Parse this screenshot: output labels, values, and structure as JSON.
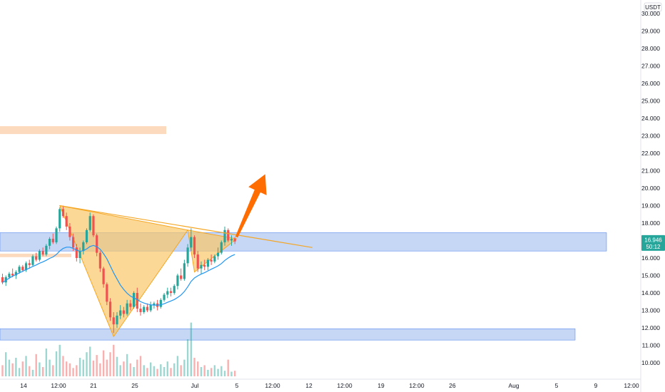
{
  "chart_data": {
    "type": "candlestick",
    "currency": "USDT",
    "ylim": [
      9.7,
      30.8
    ],
    "y_ticks": [
      "30.000",
      "29.000",
      "28.000",
      "27.000",
      "26.000",
      "25.000",
      "24.000",
      "23.000",
      "22.000",
      "21.000",
      "20.000",
      "19.000",
      "18.000",
      "17.000",
      "16.000",
      "15.000",
      "14.000",
      "13.000",
      "12.000",
      "11.000",
      "10.000"
    ],
    "x_ticks": [
      "14",
      "12:00",
      "21",
      "25",
      "Jul",
      "5",
      "12:00",
      "12",
      "12:00",
      "19",
      "12:00",
      "26",
      "Aug",
      "5",
      "9",
      "12:00"
    ],
    "last_price": "16.946",
    "countdown": "50:12",
    "colors": {
      "up": "#26a69a",
      "down": "#ef5350",
      "ma": "#2196f3",
      "resistance_zone": "#bcd0f5",
      "supply_zone": "#fbd3b3",
      "pattern_fill": "#f9c86a",
      "trendline": "#f5a623",
      "arrow": "#ff6d00",
      "badge": "#26a69a"
    },
    "zones": [
      {
        "name": "resistance-zone",
        "from": 16.4,
        "to": 17.45
      },
      {
        "name": "support-zone",
        "from": 11.3,
        "to": 11.95
      },
      {
        "name": "supply-zone",
        "from": 23.1,
        "to": 23.55
      },
      {
        "name": "minor-zone",
        "from": 16.05,
        "to": 16.25
      }
    ],
    "candles": [
      [
        14.9,
        15.1,
        14.5,
        14.6
      ],
      [
        14.6,
        15.0,
        14.4,
        14.9
      ],
      [
        14.9,
        15.2,
        14.8,
        15.1
      ],
      [
        15.1,
        15.4,
        14.9,
        15.0
      ],
      [
        15.0,
        15.3,
        14.8,
        15.2
      ],
      [
        15.2,
        15.6,
        15.1,
        15.5
      ],
      [
        15.5,
        15.6,
        15.2,
        15.3
      ],
      [
        15.3,
        15.8,
        15.2,
        15.7
      ],
      [
        15.7,
        15.9,
        15.4,
        15.6
      ],
      [
        15.6,
        16.2,
        15.5,
        16.1
      ],
      [
        16.1,
        16.3,
        15.8,
        15.9
      ],
      [
        15.9,
        16.5,
        15.8,
        16.4
      ],
      [
        16.4,
        16.6,
        16.1,
        16.2
      ],
      [
        16.2,
        16.8,
        16.1,
        16.7
      ],
      [
        16.7,
        17.2,
        16.5,
        17.1
      ],
      [
        17.1,
        17.4,
        16.8,
        16.9
      ],
      [
        16.9,
        17.8,
        16.8,
        17.7
      ],
      [
        17.7,
        18.9,
        17.5,
        18.8
      ],
      [
        18.8,
        19.0,
        18.3,
        18.4
      ],
      [
        18.4,
        18.6,
        17.6,
        17.8
      ],
      [
        17.8,
        18.0,
        17.0,
        17.2
      ],
      [
        17.2,
        17.4,
        16.4,
        16.6
      ],
      [
        16.6,
        16.8,
        15.8,
        16.0
      ],
      [
        16.0,
        16.6,
        15.7,
        16.4
      ],
      [
        16.4,
        17.0,
        16.2,
        16.9
      ],
      [
        16.9,
        17.7,
        16.8,
        17.6
      ],
      [
        17.6,
        18.6,
        17.5,
        18.4
      ],
      [
        18.4,
        18.5,
        17.2,
        17.3
      ],
      [
        17.3,
        17.4,
        16.1,
        16.3
      ],
      [
        16.3,
        16.4,
        15.2,
        15.4
      ],
      [
        15.4,
        15.5,
        14.3,
        14.5
      ],
      [
        14.5,
        14.6,
        13.3,
        13.5
      ],
      [
        13.5,
        13.7,
        12.4,
        12.6
      ],
      [
        12.6,
        12.9,
        11.7,
        12.2
      ],
      [
        12.2,
        12.9,
        12.0,
        12.7
      ],
      [
        12.7,
        13.3,
        12.5,
        13.0
      ],
      [
        13.0,
        13.2,
        12.6,
        12.8
      ],
      [
        12.8,
        13.6,
        12.7,
        13.4
      ],
      [
        13.4,
        13.6,
        13.0,
        13.2
      ],
      [
        13.2,
        14.1,
        13.1,
        14.0
      ],
      [
        14.0,
        14.3,
        12.9,
        13.1
      ],
      [
        13.1,
        13.4,
        12.7,
        12.9
      ],
      [
        12.9,
        13.3,
        12.8,
        13.2
      ],
      [
        13.2,
        13.4,
        12.9,
        13.0
      ],
      [
        13.0,
        13.5,
        12.9,
        13.3
      ],
      [
        13.3,
        13.5,
        13.1,
        13.4
      ],
      [
        13.4,
        13.6,
        13.0,
        13.2
      ],
      [
        13.2,
        13.7,
        13.1,
        13.6
      ],
      [
        13.6,
        14.0,
        13.5,
        13.9
      ],
      [
        13.9,
        14.3,
        13.7,
        14.1
      ],
      [
        14.1,
        14.3,
        13.8,
        14.0
      ],
      [
        14.0,
        14.5,
        13.9,
        14.4
      ],
      [
        14.4,
        15.1,
        14.2,
        15.0
      ],
      [
        15.0,
        15.4,
        14.7,
        14.8
      ],
      [
        14.8,
        15.9,
        14.7,
        15.7
      ],
      [
        15.7,
        16.8,
        15.5,
        16.6
      ],
      [
        16.6,
        17.7,
        16.4,
        17.2
      ],
      [
        17.2,
        17.3,
        16.0,
        16.2
      ],
      [
        16.2,
        16.4,
        15.2,
        15.4
      ],
      [
        15.4,
        15.8,
        15.1,
        15.6
      ],
      [
        15.6,
        15.9,
        15.3,
        15.5
      ],
      [
        15.5,
        16.0,
        15.3,
        15.9
      ],
      [
        15.9,
        16.2,
        15.6,
        15.8
      ],
      [
        15.8,
        16.2,
        15.7,
        16.1
      ],
      [
        16.1,
        16.6,
        15.9,
        16.3
      ],
      [
        16.3,
        17.0,
        16.2,
        16.9
      ],
      [
        16.9,
        17.8,
        16.7,
        17.6
      ],
      [
        17.6,
        17.7,
        16.9,
        17.0
      ],
      [
        17.0,
        17.3,
        16.7,
        17.1
      ],
      [
        17.1,
        17.2,
        16.8,
        16.95
      ]
    ],
    "volumes": [
      12,
      26,
      18,
      14,
      20,
      9,
      16,
      22,
      11,
      7,
      24,
      15,
      10,
      30,
      18,
      12,
      27,
      34,
      22,
      16,
      14,
      9,
      12,
      20,
      18,
      26,
      32,
      17,
      23,
      14,
      28,
      18,
      26,
      34,
      21,
      12,
      16,
      24,
      14,
      10,
      18,
      22,
      12,
      9,
      15,
      11,
      8,
      13,
      10,
      16,
      9,
      14,
      22,
      12,
      18,
      40,
      58,
      20,
      16,
      10,
      12,
      7,
      9,
      12,
      8,
      11,
      6,
      18,
      5,
      6
    ],
    "ma": [
      14.6,
      14.72,
      14.85,
      14.96,
      15.05,
      15.15,
      15.24,
      15.34,
      15.42,
      15.52,
      15.6,
      15.7,
      15.78,
      15.87,
      15.98,
      16.06,
      16.2,
      16.4,
      16.55,
      16.62,
      16.62,
      16.55,
      16.45,
      16.38,
      16.42,
      16.52,
      16.66,
      16.72,
      16.65,
      16.5,
      16.25,
      15.95,
      15.55,
      15.15,
      14.8,
      14.45,
      14.2,
      13.98,
      13.82,
      13.72,
      13.62,
      13.5,
      13.42,
      13.36,
      13.32,
      13.3,
      13.3,
      13.32,
      13.38,
      13.46,
      13.54,
      13.62,
      13.74,
      13.88,
      14.08,
      14.35,
      14.66,
      14.86,
      14.98,
      15.08,
      15.16,
      15.26,
      15.36,
      15.45,
      15.55,
      15.68,
      15.86,
      16.0,
      16.12,
      16.2
    ],
    "pattern": {
      "triangle_left": [
        [
          17,
          19.0
        ],
        [
          33,
          11.5
        ],
        [
          55,
          17.6
        ]
      ],
      "triangle_right": [
        [
          55,
          17.6
        ],
        [
          57,
          15.2
        ],
        [
          69.5,
          17.1
        ]
      ],
      "upper_line": [
        [
          17,
          19.0
        ],
        [
          92,
          16.6
        ]
      ]
    },
    "arrow": {
      "from": [
        69.5,
        17.2
      ],
      "to": [
        78,
        20.8
      ]
    }
  }
}
